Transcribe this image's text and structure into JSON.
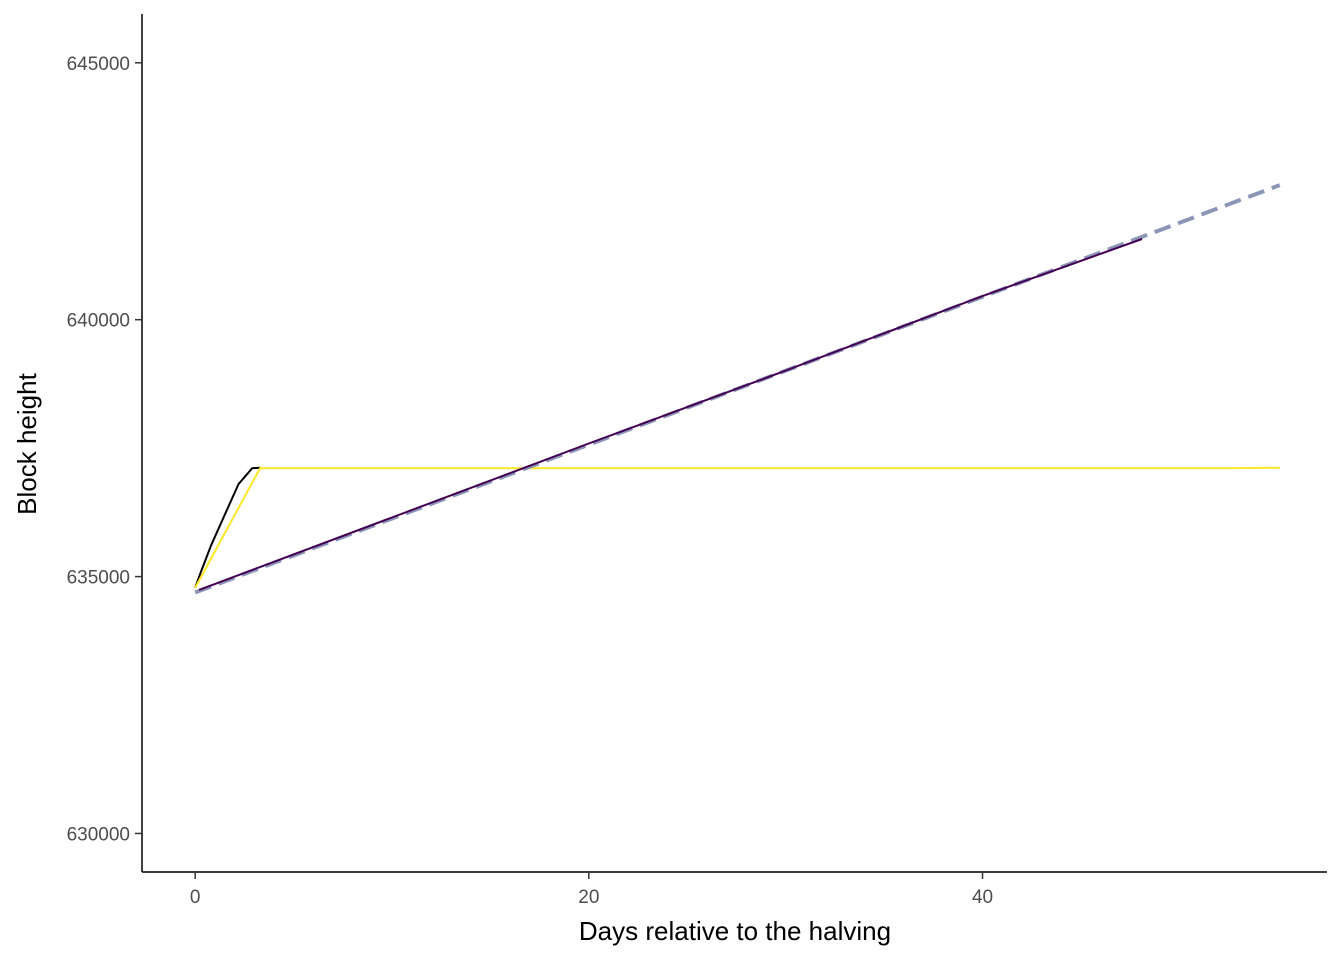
{
  "chart_data": {
    "type": "line",
    "xlabel": "Days relative to the halving",
    "ylabel": "Block height",
    "xlim": [
      -2.7,
      57.5
    ],
    "ylim": [
      629250,
      645950
    ],
    "x_ticks": [
      0,
      20,
      40
    ],
    "y_ticks": [
      630000,
      635000,
      640000,
      645000
    ],
    "grid": false,
    "legend": "none",
    "series": [
      {
        "color": "#000000",
        "dashed": false,
        "width": 2,
        "x": [
          0,
          0.3,
          0.8,
          1.5,
          2.2,
          2.9,
          3.3
        ],
        "y": [
          634780,
          635100,
          635600,
          636200,
          636800,
          637110,
          637120
        ]
      },
      {
        "color": "#FDE725",
        "dashed": false,
        "width": 2,
        "x": [
          0,
          3.3,
          10,
          20,
          30,
          40,
          52.5,
          55.1
        ],
        "y": [
          634780,
          637110,
          637110,
          637110,
          637110,
          637110,
          637110,
          637120
        ]
      },
      {
        "color": "#8C97B8",
        "dashed": true,
        "width": 4,
        "x": [
          0,
          55.1
        ],
        "y": [
          634690,
          642620
        ]
      },
      {
        "color": "#440154",
        "dashed": false,
        "width": 2,
        "x": [
          0.2,
          10,
          20,
          30,
          40,
          48.1
        ],
        "y": [
          634740,
          636150,
          637590,
          639010,
          640460,
          641570
        ]
      }
    ]
  }
}
